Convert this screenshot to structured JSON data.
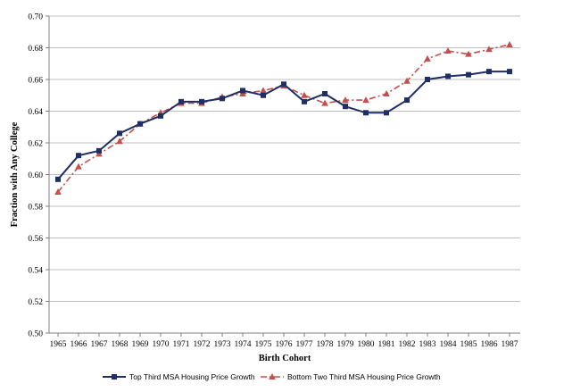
{
  "chart_data": {
    "type": "line",
    "xlabel": "Birth Cohort",
    "ylabel": "Fraction with Any College",
    "ylim": [
      0.5,
      0.7
    ],
    "y_ticks": [
      "0.50",
      "0.52",
      "0.54",
      "0.56",
      "0.58",
      "0.60",
      "0.62",
      "0.64",
      "0.66",
      "0.68",
      "0.70"
    ],
    "categories": [
      "1965",
      "1966",
      "1967",
      "1968",
      "1969",
      "1970",
      "1971",
      "1972",
      "1973",
      "1974",
      "1975",
      "1976",
      "1977",
      "1978",
      "1979",
      "1980",
      "1981",
      "1982",
      "1983",
      "1984",
      "1985",
      "1986",
      "1987"
    ],
    "grid": "horizontal",
    "legend_position": "bottom",
    "series": [
      {
        "name": "Top Third MSA Housing Price Growth",
        "color": "#1f2e64",
        "style": "solid",
        "marker": "square",
        "values": [
          0.597,
          0.612,
          0.615,
          0.626,
          0.632,
          0.637,
          0.646,
          0.646,
          0.648,
          0.653,
          0.65,
          0.657,
          0.646,
          0.651,
          0.643,
          0.639,
          0.639,
          0.647,
          0.66,
          0.662,
          0.663,
          0.665,
          0.665
        ]
      },
      {
        "name": "Bottom Two Third MSA Housing Price Growth",
        "color": "#c0504d",
        "style": "dashdot",
        "marker": "triangle",
        "values": [
          0.589,
          0.605,
          0.613,
          0.621,
          0.632,
          0.639,
          0.645,
          0.645,
          0.649,
          0.651,
          0.653,
          0.656,
          0.65,
          0.645,
          0.647,
          0.647,
          0.651,
          0.659,
          0.673,
          0.678,
          0.676,
          0.679,
          0.682
        ]
      }
    ]
  }
}
